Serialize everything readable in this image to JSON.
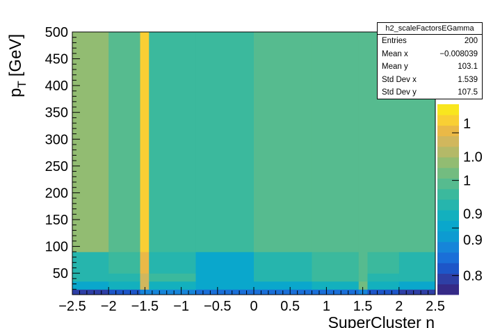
{
  "chart_data": {
    "type": "heatmap",
    "hist_name": "h2_scaleFactorsEGamma",
    "xlabel": "SuperCluster η",
    "ylabel_main": "p",
    "ylabel_sub": "T",
    "ylabel_unit": "[GeV]",
    "xlim": [
      -2.5,
      2.5
    ],
    "ylim": [
      10,
      500
    ],
    "x_edges": [
      -2.5,
      -2.0,
      -1.566,
      -1.444,
      -0.8,
      0.0,
      0.8,
      1.444,
      1.566,
      2.0,
      2.5
    ],
    "y_edges": [
      10,
      20,
      35,
      50,
      90,
      500
    ],
    "values": [
      [
        0.8,
        0.82,
        0.86,
        0.86,
        0.84,
        0.84,
        0.84,
        0.86,
        0.82,
        0.8
      ],
      [
        0.9,
        0.92,
        1.08,
        0.93,
        0.91,
        0.91,
        0.93,
        1.02,
        0.92,
        0.9
      ],
      [
        0.94,
        0.95,
        1.09,
        0.96,
        0.91,
        0.95,
        0.97,
        1.0,
        0.95,
        0.94
      ],
      [
        0.94,
        0.96,
        1.1,
        0.95,
        0.91,
        0.95,
        0.97,
        0.99,
        0.96,
        0.94
      ],
      [
        1.04,
        1.0,
        1.12,
        0.98,
        0.98,
        1.0,
        1.0,
        0.99,
        0.99,
        1.0
      ]
    ],
    "x_ticks": [
      -2.5,
      -2,
      -1.5,
      -1,
      -0.5,
      0,
      0.5,
      1,
      1.5,
      2,
      2.5
    ],
    "x_tick_labels": [
      "−2.5",
      "−2",
      "−1.5",
      "−1",
      "−0.5",
      "0",
      "0.5",
      "1",
      "1.5",
      "2",
      "2.5"
    ],
    "y_ticks": [
      50,
      100,
      150,
      200,
      250,
      300,
      350,
      400,
      450,
      500
    ],
    "y_tick_labels": [
      "50",
      "100",
      "150",
      "200",
      "250",
      "300",
      "350",
      "400",
      "450",
      "500"
    ],
    "z_range": [
      0.76,
      1.16
    ],
    "z_ticks": [
      0.8,
      0.9,
      1.0,
      1.1
    ],
    "z_tick_labels": [
      "0.8",
      "0.9",
      "0.9",
      "1",
      "1.0",
      "1"
    ],
    "z_tick_label_values": [
      0.8,
      0.875,
      0.93,
      1.0,
      1.05,
      1.12
    ],
    "palette": [
      "#352a87",
      "#2e3fa5",
      "#1d56c8",
      "#1a6fd8",
      "#1685d9",
      "#0d9bd1",
      "#0aa7cc",
      "#13b0be",
      "#26b5ad",
      "#3bb99d",
      "#56bb8f",
      "#73bc80",
      "#92bc72",
      "#b4b968",
      "#d1b75d",
      "#eab947",
      "#f9cf34",
      "#f9e61e"
    ]
  },
  "stats": {
    "title": "h2_scaleFactorsEGamma",
    "rows": [
      {
        "label": "Entries",
        "value": "200"
      },
      {
        "label": "Mean x",
        "value": "−0.008039"
      },
      {
        "label": "Mean y",
        "value": "103.1"
      },
      {
        "label": "Std Dev x",
        "value": "1.539"
      },
      {
        "label": "Std Dev y",
        "value": "107.5"
      }
    ]
  }
}
